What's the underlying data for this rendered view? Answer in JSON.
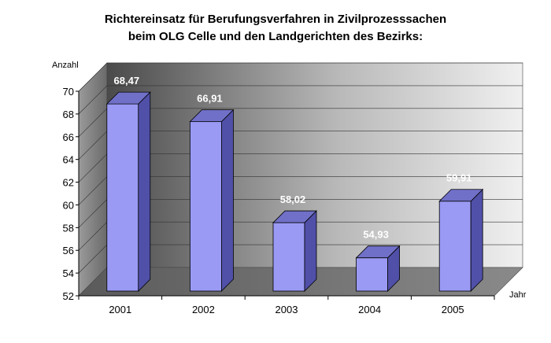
{
  "chart_data": {
    "type": "bar",
    "title": "Richtereinsatz für Berufungsverfahren in Zivilprozesssachen",
    "subtitle": "beim OLG Celle und den Landgerichten des Bezirks:",
    "ylabel": "Anzahl",
    "xlabel": "Jahr",
    "categories": [
      "2001",
      "2002",
      "2003",
      "2004",
      "2005"
    ],
    "values": [
      68.47,
      66.91,
      58.02,
      54.93,
      59.91
    ],
    "value_labels": [
      "68,47",
      "66,91",
      "58,02",
      "54,93",
      "59,91"
    ],
    "ylim": [
      52,
      70
    ],
    "yticks": [
      52,
      54,
      56,
      58,
      60,
      62,
      64,
      66,
      68,
      70
    ],
    "grid": true,
    "colors": {
      "bar_front": "#9a9af5",
      "bar_side": "#5050a8",
      "bar_top": "#7070c8",
      "wall_dark": "#5a5a5a",
      "wall_light": "#e8e8e8",
      "floor": "#6e6e6e",
      "value_label": "#ffffff"
    }
  }
}
